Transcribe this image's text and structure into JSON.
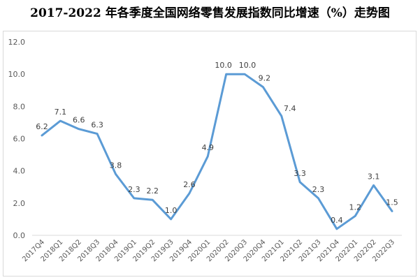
{
  "chart_data": {
    "type": "line",
    "title": "2017-2022 年各季度全国网络零售发展指数同比增速（%）走势图",
    "xlabel": "",
    "ylabel": "",
    "categories": [
      "2017Q4",
      "2018Q1",
      "2018Q2",
      "2018Q3",
      "2018Q4",
      "2019Q1",
      "2019Q2",
      "2019Q3",
      "2019Q4",
      "2020Q1",
      "2020Q2",
      "2020Q3",
      "2020Q4",
      "2021Q1",
      "2021Q2",
      "2021Q3",
      "2021Q4",
      "2022Q1",
      "2022Q2",
      "2022Q3"
    ],
    "series": [
      {
        "values": [
          6.2,
          7.1,
          6.6,
          6.3,
          3.8,
          2.3,
          2.2,
          1.0,
          2.6,
          4.9,
          10.0,
          10.0,
          9.2,
          7.4,
          3.3,
          2.3,
          0.4,
          1.2,
          3.1,
          1.5
        ]
      }
    ],
    "data_labels": [
      "6.2",
      "7.1",
      "6.6",
      "6.3",
      "3.8",
      "2.3",
      "2.2",
      "1.0",
      "2.6",
      "4.9",
      "10.0",
      "10.0",
      "9.2",
      "7.4",
      "3.3",
      "2.3",
      "0.4",
      "1.2",
      "3.1",
      "1.5"
    ],
    "ylim": [
      0,
      12
    ],
    "yticks": [
      "0.0",
      "2.0",
      "4.0",
      "6.0",
      "8.0",
      "10.0",
      "12.0"
    ],
    "grid": false,
    "legend": "none",
    "line_color": "#5b9bd5"
  }
}
